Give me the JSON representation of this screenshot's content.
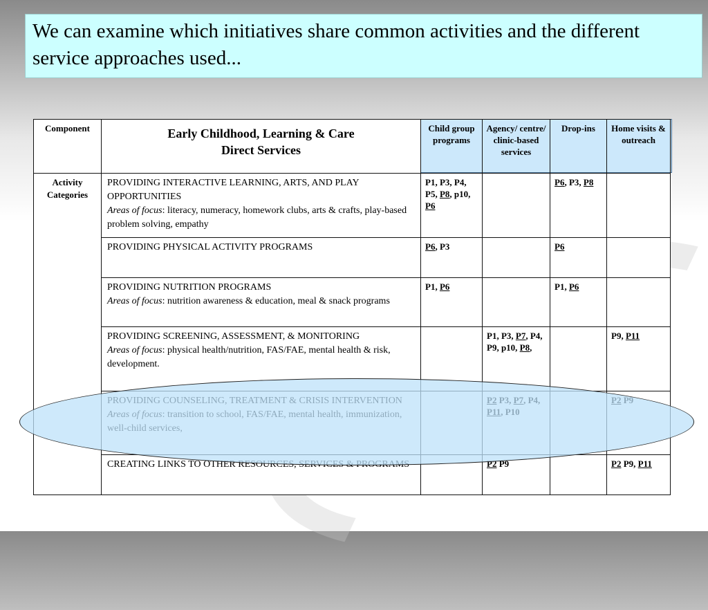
{
  "title": "We can examine which initiatives share common activities and the different service approaches used...",
  "table": {
    "component_header": "Component",
    "main_header_line1": "Early Childhood, Learning & Care",
    "main_header_line2": "Direct Services",
    "service_headers": [
      "Child group programs",
      "Agency/ centre/ clinic-based services",
      "Drop-ins",
      "Home visits & outreach"
    ],
    "row_group_label": "Activity Categories",
    "focus_label": "Areas of focus",
    "rows": [
      {
        "activity": "PROVIDING INTERACTIVE LEARNING, ARTS, AND PLAY OPPORTUNITIES",
        "focus": ":  literacy, numeracy, homework clubs, arts & crafts, play-based problem solving, empathy",
        "cells": [
          [
            {
              "t": "P1, P3, P4, P5, "
            },
            {
              "t": "P8",
              "u": true
            },
            {
              "t": ", p10, "
            },
            {
              "t": "P6",
              "u": true
            }
          ],
          [],
          [
            {
              "t": "P6",
              "u": true
            },
            {
              "t": ",  P3, "
            },
            {
              "t": "P8",
              "u": true
            }
          ],
          []
        ]
      },
      {
        "activity": "PROVIDING PHYSICAL ACTIVITY PROGRAMS",
        "focus": "",
        "cells": [
          [
            {
              "t": "P6",
              "u": true
            },
            {
              "t": ", P3"
            }
          ],
          [],
          [
            {
              "t": "P6",
              "u": true
            }
          ],
          []
        ]
      },
      {
        "activity": "PROVIDING NUTRITION PROGRAMS",
        "focus": ":  nutrition awareness & education, meal & snack programs",
        "cells": [
          [
            {
              "t": "P1, "
            },
            {
              "t": "P6",
              "u": true
            }
          ],
          [],
          [
            {
              "t": "P1, "
            },
            {
              "t": "P6",
              "u": true
            }
          ],
          []
        ]
      },
      {
        "activity": "PROVIDING SCREENING, ASSESSMENT, & MONITORING",
        "focus": ": physical health/nutrition, FAS/FAE, mental health & risk, development.",
        "cells": [
          [],
          [
            {
              "t": "P1, P3, "
            },
            {
              "t": "P7",
              "u": true
            },
            {
              "t": ", P4, P9, p10, "
            },
            {
              "t": "P8",
              "u": true
            },
            {
              "t": ","
            }
          ],
          [],
          [
            {
              "t": "P9, "
            },
            {
              "t": "P11",
              "u": true
            }
          ]
        ]
      },
      {
        "activity": "PROVIDING COUNSELING, TREATMENT & CRISIS INTERVENTION",
        "focus": ":  transition to school,  FAS/FAE, mental health, immunization, well-child services,",
        "cells": [
          [],
          [
            {
              "t": "P2",
              "u": true
            },
            {
              "t": " P3, "
            },
            {
              "t": "P7",
              "u": true
            },
            {
              "t": ", P4, "
            },
            {
              "t": "P11",
              "u": true
            },
            {
              "t": ", P10"
            }
          ],
          [],
          [
            {
              "t": "P2",
              "u": true
            },
            {
              "t": " P9"
            }
          ]
        ]
      },
      {
        "activity": "CREATING LINKS TO OTHER RESOURCES, SERVICES & PROGRAMS",
        "focus": "",
        "cells": [
          [],
          [
            {
              "t": "P2",
              "u": true
            },
            {
              "t": " P9"
            }
          ],
          [],
          [
            {
              "t": "P2",
              "u": true
            },
            {
              "t": " P9, "
            },
            {
              "t": "P11",
              "u": true
            }
          ]
        ]
      }
    ]
  },
  "colors": {
    "title_bg": "#ccffff",
    "header_bg": "#cce8fb",
    "highlight_ellipse": "#bee1fa"
  }
}
